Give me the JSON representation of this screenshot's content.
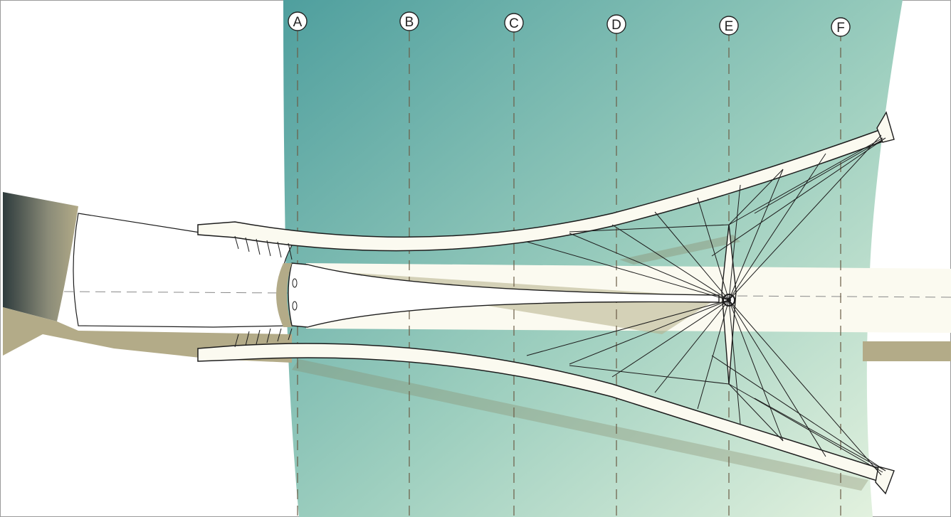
{
  "drawing": {
    "grid_labels": [
      "A",
      "B",
      "C",
      "D",
      "E",
      "F"
    ]
  },
  "colors": {
    "water_dark": "#4f9f9e",
    "water_light": "#d8eedc",
    "embankment": "#b3ab88",
    "deck": "#fbfaf0",
    "shadow": "#b5ae88",
    "line": "#1c1c1c"
  }
}
